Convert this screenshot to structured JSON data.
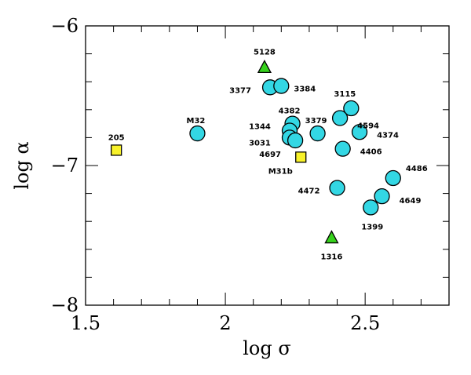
{
  "chart_data": {
    "type": "scatter",
    "title": "",
    "xlabel": "log σ",
    "ylabel": "log α",
    "xlim": [
      1.5,
      2.8
    ],
    "ylim": [
      -8,
      -6
    ],
    "grid": false,
    "x_ticks": [
      {
        "value": 1.5,
        "label": "1.5"
      },
      {
        "value": 2,
        "label": "2"
      },
      {
        "value": 2.5,
        "label": "2.5"
      }
    ],
    "y_ticks": [
      {
        "value": -6,
        "label": "−6"
      },
      {
        "value": -7,
        "label": "−7"
      },
      {
        "value": -8,
        "label": "−8"
      }
    ],
    "series": [
      {
        "marker": "circle",
        "color": "#33d7e4",
        "points": [
          {
            "x": 1.9,
            "y": -6.77,
            "label": "M32",
            "lx": -2,
            "ly": -16
          },
          {
            "x": 2.16,
            "y": -6.44,
            "label": "3377",
            "lx": -38,
            "ly": 4
          },
          {
            "x": 2.2,
            "y": -6.43,
            "label": "3384",
            "lx": 30,
            "ly": 4
          },
          {
            "x": 2.24,
            "y": -6.7,
            "label": "4382",
            "lx": -4,
            "ly": -16
          },
          {
            "x": 2.23,
            "y": -6.75,
            "label": "1344",
            "lx": -38,
            "ly": -5
          },
          {
            "x": 2.23,
            "y": -6.8,
            "label": "3031",
            "lx": -38,
            "ly": 7
          },
          {
            "x": 2.25,
            "y": -6.82,
            "label": "4697",
            "lx": -32,
            "ly": 18
          },
          {
            "x": 2.33,
            "y": -6.77,
            "label": "3379",
            "lx": -2,
            "ly": -16
          },
          {
            "x": 2.45,
            "y": -6.59,
            "label": "3115",
            "lx": -8,
            "ly": -18
          },
          {
            "x": 2.41,
            "y": -6.66,
            "label": "4594",
            "lx": 36,
            "ly": 10
          },
          {
            "x": 2.48,
            "y": -6.76,
            "label": "4374",
            "lx": 36,
            "ly": 4
          },
          {
            "x": 2.42,
            "y": -6.88,
            "label": "4406",
            "lx": 36,
            "ly": 4
          },
          {
            "x": 2.6,
            "y": -7.09,
            "label": "4486",
            "lx": 30,
            "ly": -12
          },
          {
            "x": 2.4,
            "y": -7.16,
            "label": "4472",
            "lx": -36,
            "ly": 4
          },
          {
            "x": 2.56,
            "y": -7.22,
            "label": "4649",
            "lx": 36,
            "ly": 6
          },
          {
            "x": 2.52,
            "y": -7.3,
            "label": "1399",
            "lx": 2,
            "ly": 25
          }
        ]
      },
      {
        "marker": "square",
        "color": "#f8f22a",
        "points": [
          {
            "x": 1.61,
            "y": -6.89,
            "label": "205",
            "lx": 0,
            "ly": -16
          },
          {
            "x": 2.27,
            "y": -6.94,
            "label": "M31b",
            "lx": -26,
            "ly": 18
          }
        ]
      },
      {
        "marker": "triangle",
        "color": "#36d21c",
        "points": [
          {
            "x": 2.14,
            "y": -6.3,
            "label": "5128",
            "lx": 0,
            "ly": -20
          },
          {
            "x": 2.38,
            "y": -7.52,
            "label": "1316",
            "lx": 0,
            "ly": 24
          }
        ]
      }
    ]
  }
}
